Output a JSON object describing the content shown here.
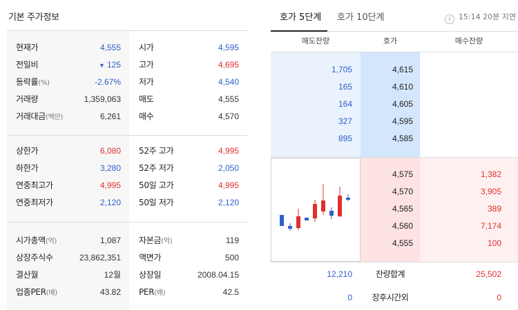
{
  "left": {
    "title": "기본 주가정보",
    "section1": {
      "col1": [
        {
          "label": "현재가",
          "sub": "",
          "value": "4,555",
          "color": "blue"
        },
        {
          "label": "전일비",
          "sub": "",
          "value": "125",
          "arrow": "▼",
          "color": "blue"
        },
        {
          "label": "등락률",
          "sub": "(%)",
          "value": "-2.67%",
          "color": "blue"
        },
        {
          "label": "거래량",
          "sub": "",
          "value": "1,359,063",
          "color": "normal"
        },
        {
          "label": "거래대금",
          "sub": "(백만)",
          "value": "6,261",
          "color": "normal"
        }
      ],
      "col2": [
        {
          "label": "시가",
          "sub": "",
          "value": "4,595",
          "color": "blue"
        },
        {
          "label": "고가",
          "sub": "",
          "value": "4,695",
          "color": "red"
        },
        {
          "label": "저가",
          "sub": "",
          "value": "4,540",
          "color": "blue"
        },
        {
          "label": "매도",
          "sub": "",
          "value": "4,555",
          "color": "normal"
        },
        {
          "label": "매수",
          "sub": "",
          "value": "4,570",
          "color": "normal"
        }
      ]
    },
    "section2": {
      "col1": [
        {
          "label": "상한가",
          "sub": "",
          "value": "6,080",
          "color": "red"
        },
        {
          "label": "하한가",
          "sub": "",
          "value": "3,280",
          "color": "blue"
        },
        {
          "label": "연중최고가",
          "sub": "",
          "value": "4,995",
          "color": "red"
        },
        {
          "label": "연중최저가",
          "sub": "",
          "value": "2,120",
          "color": "blue"
        }
      ],
      "col2": [
        {
          "label": "52주 고가",
          "sub": "",
          "value": "4,995",
          "color": "red"
        },
        {
          "label": "52주 저가",
          "sub": "",
          "value": "2,050",
          "color": "blue"
        },
        {
          "label": "50일 고가",
          "sub": "",
          "value": "4,995",
          "color": "red"
        },
        {
          "label": "50일 저가",
          "sub": "",
          "value": "2,120",
          "color": "blue"
        }
      ]
    },
    "section3": {
      "col1": [
        {
          "label": "시가총액",
          "sub": "(억)",
          "value": "1,087",
          "color": "normal"
        },
        {
          "label": "상장주식수",
          "sub": "",
          "value": "23,862,351",
          "color": "normal"
        },
        {
          "label": "결산월",
          "sub": "",
          "value": "12월",
          "color": "normal"
        },
        {
          "label": "업종PER",
          "sub": "(배)",
          "value": "43.82",
          "color": "normal"
        }
      ],
      "col2": [
        {
          "label": "자본금",
          "sub": "(억)",
          "value": "119",
          "color": "normal"
        },
        {
          "label": "액면가",
          "sub": "",
          "value": "500",
          "color": "normal"
        },
        {
          "label": "상장일",
          "sub": "",
          "value": "2008.04.15",
          "color": "normal"
        },
        {
          "label": "PER",
          "sub": "(배)",
          "value": "42.5",
          "color": "normal"
        }
      ]
    }
  },
  "right": {
    "tabs": [
      "호가 5단계",
      "호가 10단계"
    ],
    "active_tab": 0,
    "delay_icon": "info-icon",
    "delay_text": "15:14 20분 지연",
    "headers": {
      "ask_qty": "매도잔량",
      "price": "호가",
      "bid_qty": "매수잔량"
    },
    "asks": [
      {
        "qty": "1,705",
        "price": "4,615"
      },
      {
        "qty": "165",
        "price": "4,610"
      },
      {
        "qty": "164",
        "price": "4,605"
      },
      {
        "qty": "327",
        "price": "4,595"
      },
      {
        "qty": "895",
        "price": "4,585"
      }
    ],
    "bids": [
      {
        "price": "4,575",
        "qty": "1,382"
      },
      {
        "price": "4,570",
        "qty": "3,905"
      },
      {
        "price": "4,565",
        "qty": "389"
      },
      {
        "price": "4,560",
        "qty": "7,174"
      },
      {
        "price": "4,555",
        "qty": "100"
      }
    ],
    "summary": [
      {
        "label": "잔량합계",
        "ask": "12,210",
        "bid": "25,502"
      },
      {
        "label": "장후시간외",
        "ask": "0",
        "bid": "0"
      }
    ],
    "colors": {
      "up": "#e0302e",
      "down": "#2f5fc8"
    }
  }
}
